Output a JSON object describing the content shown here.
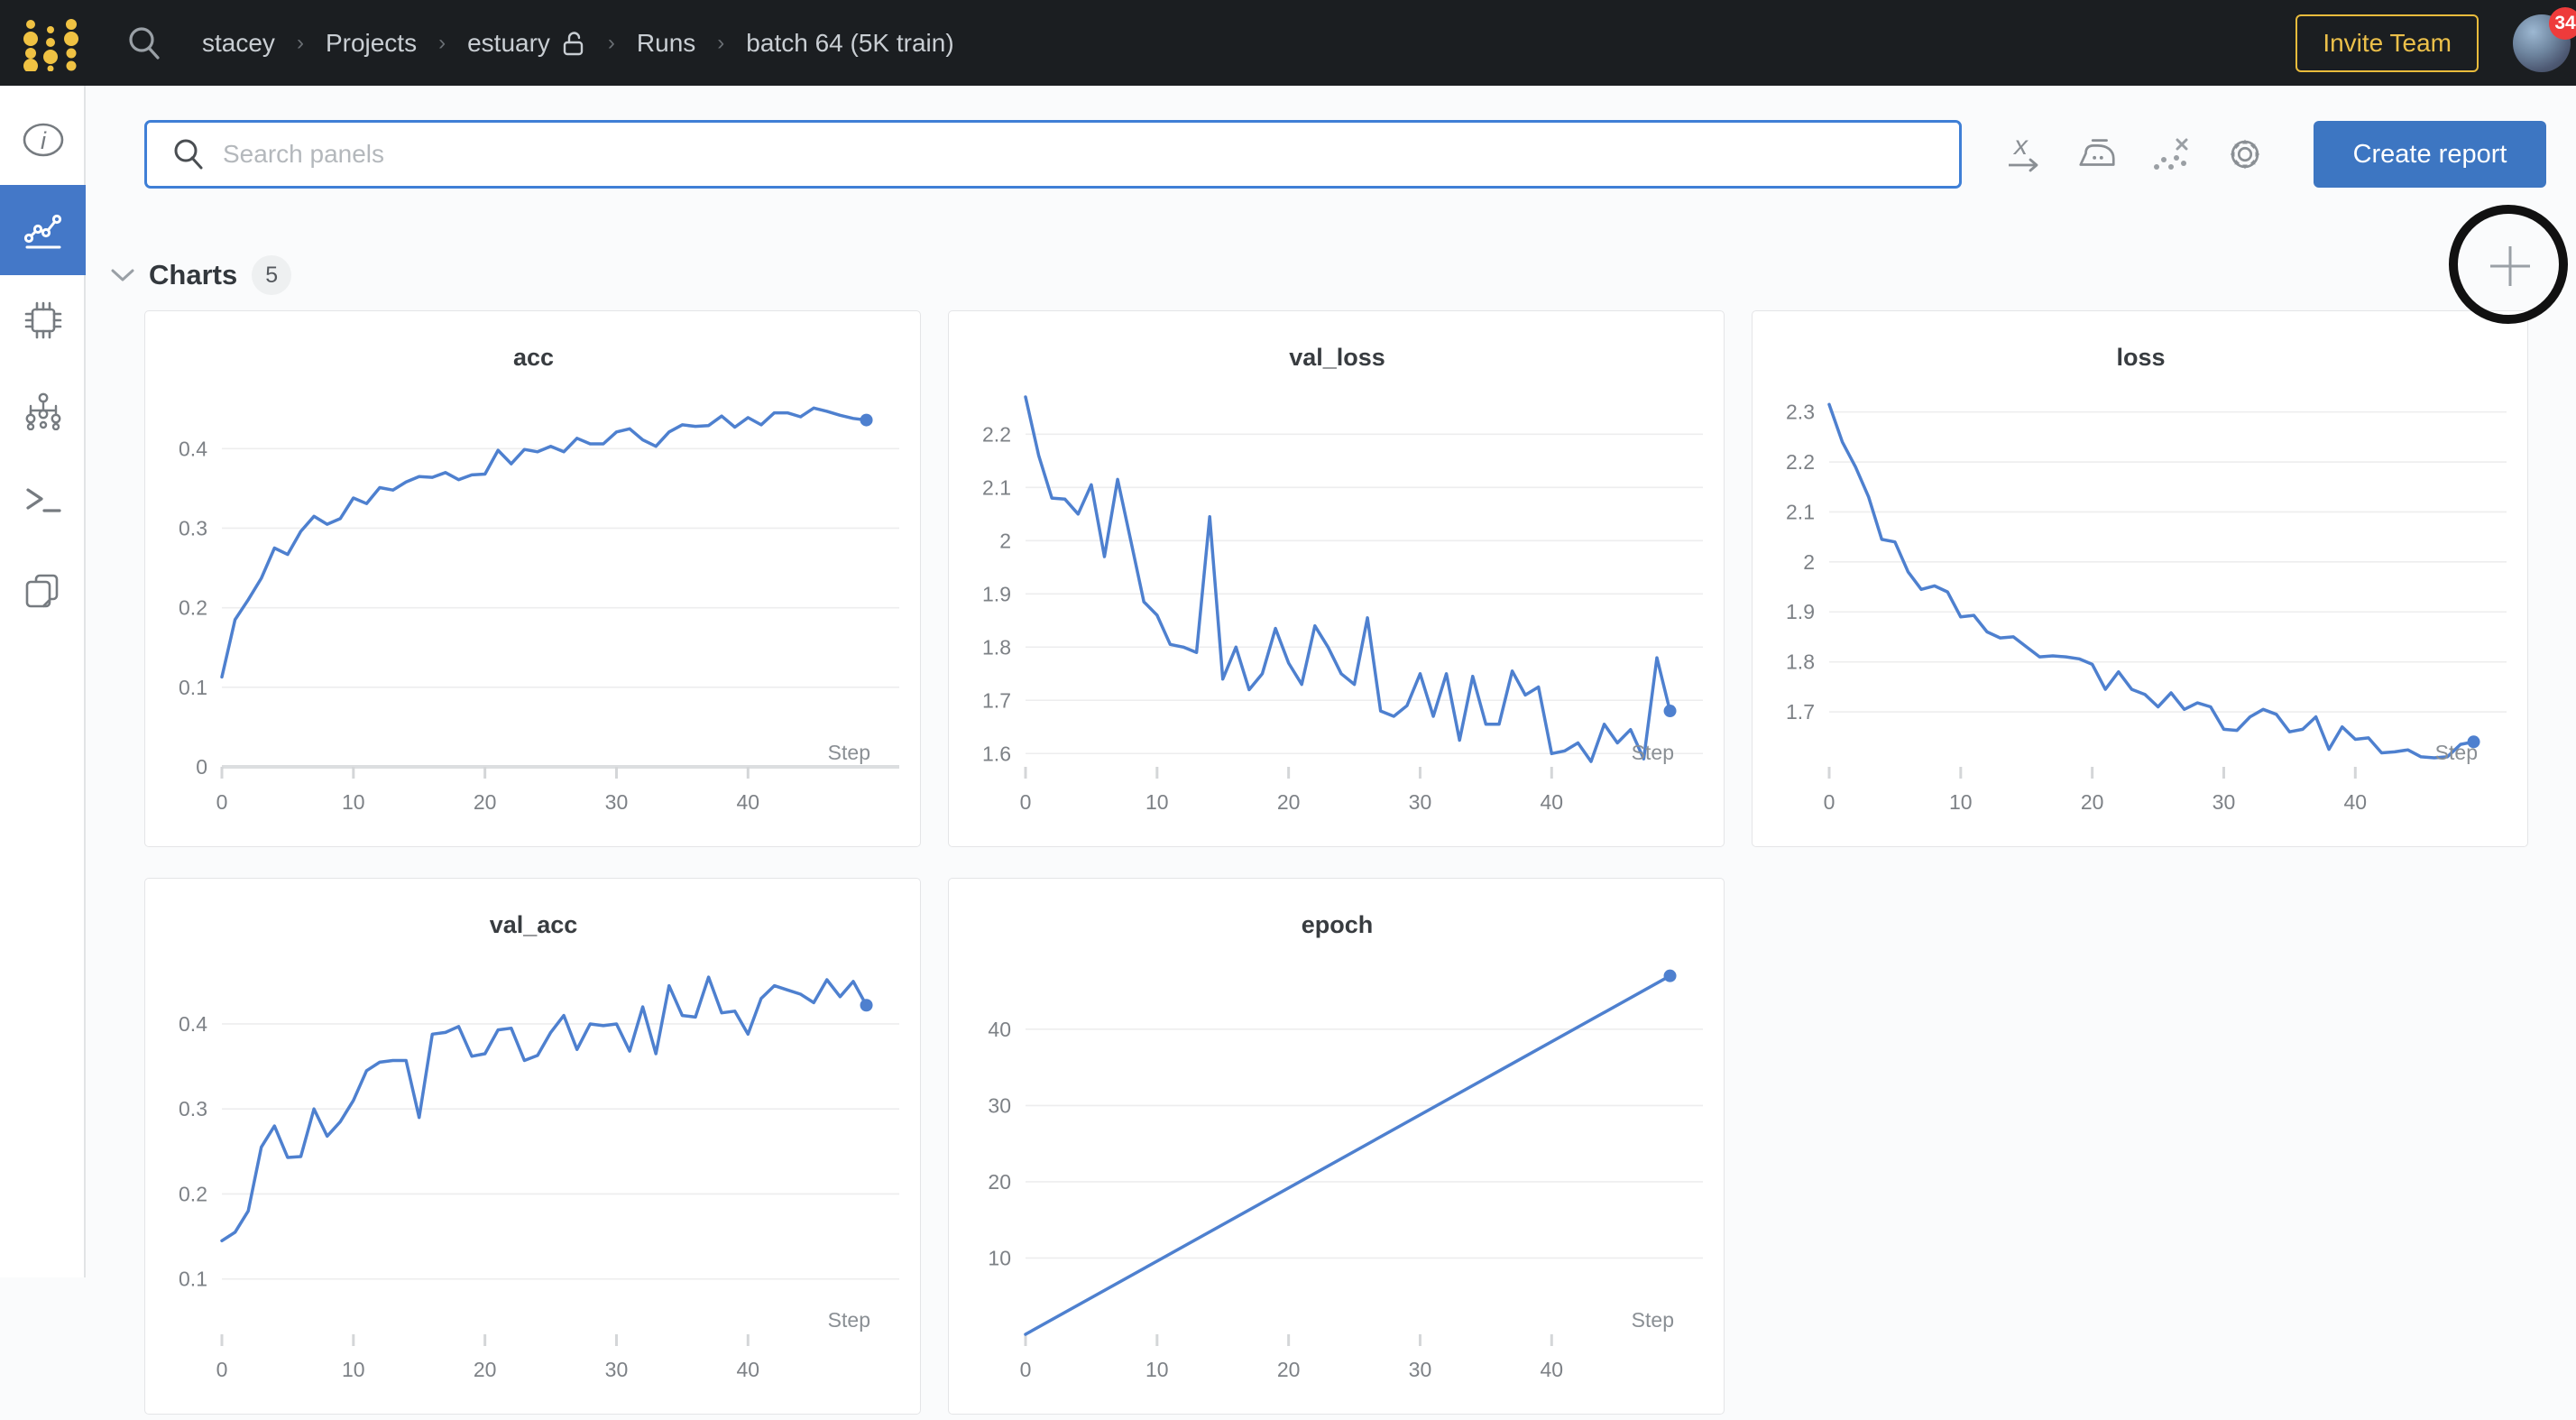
{
  "nav": {
    "breadcrumb": [
      {
        "label": "stacey"
      },
      {
        "label": "Projects"
      },
      {
        "label": "estuary",
        "icon": "unlock"
      },
      {
        "label": "Runs"
      },
      {
        "label": "batch 64 (5K train)"
      }
    ],
    "invite_button": "Invite Team",
    "notification_count": "34"
  },
  "sidebar": {
    "items": [
      {
        "id": "overview",
        "icon": "info-icon",
        "selected": false
      },
      {
        "id": "charts",
        "icon": "line-chart-icon",
        "selected": true
      },
      {
        "id": "system",
        "icon": "chip-icon",
        "selected": false
      },
      {
        "id": "model",
        "icon": "model-graph-icon",
        "selected": false
      },
      {
        "id": "logs",
        "icon": "terminal-icon",
        "selected": false
      },
      {
        "id": "files",
        "icon": "files-icon",
        "selected": false
      }
    ]
  },
  "toolbar": {
    "search_placeholder": "Search panels",
    "icons": [
      "x-axis-icon",
      "smoothing-iron-icon",
      "outliers-icon",
      "settings-gear-icon"
    ],
    "create_report_label": "Create report"
  },
  "section": {
    "title": "Charts",
    "count": "5"
  },
  "colors": {
    "accent_blue": "#4478c8",
    "line_blue": "#4e80cf",
    "button_blue": "#3d76c2",
    "gold": "#e9bc3c",
    "badge_red": "#ee3b3b",
    "nav_bg": "#1b1e21"
  },
  "chart_data": [
    {
      "type": "line",
      "title": "acc",
      "xlabel": "Step",
      "x_ticks": [
        0,
        10,
        20,
        30,
        40
      ],
      "xlim": [
        0,
        51.5
      ],
      "y_ticks": [
        "0",
        "0.1",
        "0.2",
        "0.3",
        "0.4"
      ],
      "ylim": [
        0,
        0.465
      ],
      "baseline": true,
      "end_dot": true,
      "grid": true,
      "legend": "none",
      "values": [
        0.113,
        0.185,
        0.21,
        0.237,
        0.275,
        0.267,
        0.296,
        0.315,
        0.305,
        0.312,
        0.338,
        0.331,
        0.351,
        0.348,
        0.358,
        0.365,
        0.364,
        0.37,
        0.361,
        0.367,
        0.368,
        0.398,
        0.381,
        0.399,
        0.396,
        0.403,
        0.396,
        0.413,
        0.406,
        0.406,
        0.421,
        0.425,
        0.411,
        0.403,
        0.421,
        0.43,
        0.428,
        0.429,
        0.441,
        0.427,
        0.439,
        0.43,
        0.445,
        0.445,
        0.44,
        0.451,
        0.447,
        0.442,
        0.438,
        0.436
      ]
    },
    {
      "type": "line",
      "title": "val_loss",
      "xlabel": "Step",
      "x_ticks": [
        0,
        10,
        20,
        30,
        40
      ],
      "xlim": [
        0,
        51.5
      ],
      "y_ticks": [
        "1.6",
        "1.7",
        "1.8",
        "1.9",
        "2",
        "2.1",
        "2.2"
      ],
      "ylim": [
        1.575,
        2.27
      ],
      "baseline": false,
      "end_dot": true,
      "grid": true,
      "legend": "none",
      "values": [
        2.27,
        2.16,
        2.08,
        2.078,
        2.05,
        2.105,
        1.97,
        2.115,
        2.0,
        1.885,
        1.86,
        1.805,
        1.8,
        1.79,
        2.045,
        1.74,
        1.8,
        1.72,
        1.75,
        1.835,
        1.77,
        1.73,
        1.84,
        1.8,
        1.75,
        1.73,
        1.855,
        1.68,
        1.67,
        1.69,
        1.75,
        1.67,
        1.75,
        1.625,
        1.745,
        1.655,
        1.655,
        1.755,
        1.71,
        1.725,
        1.6,
        1.605,
        1.62,
        1.585,
        1.655,
        1.62,
        1.645,
        1.59,
        1.78,
        1.68
      ]
    },
    {
      "type": "line",
      "title": "loss",
      "xlabel": "Step",
      "x_ticks": [
        0,
        10,
        20,
        30,
        40
      ],
      "xlim": [
        0,
        51.5
      ],
      "y_ticks": [
        "1.7",
        "1.8",
        "1.9",
        "2",
        "2.1",
        "2.2",
        "2.3"
      ],
      "ylim": [
        1.59,
        2.33
      ],
      "baseline": false,
      "end_dot": true,
      "grid": true,
      "legend": "none",
      "values": [
        2.315,
        2.24,
        2.19,
        2.13,
        2.045,
        2.04,
        1.98,
        1.945,
        1.952,
        1.94,
        1.89,
        1.893,
        1.86,
        1.848,
        1.85,
        1.83,
        1.81,
        1.812,
        1.81,
        1.806,
        1.795,
        1.745,
        1.78,
        1.745,
        1.735,
        1.71,
        1.738,
        1.705,
        1.718,
        1.71,
        1.665,
        1.663,
        1.69,
        1.705,
        1.695,
        1.66,
        1.665,
        1.69,
        1.625,
        1.67,
        1.645,
        1.648,
        1.618,
        1.62,
        1.624,
        1.61,
        1.608,
        1.61,
        1.635,
        1.64
      ]
    },
    {
      "type": "line",
      "title": "val_acc",
      "xlabel": "Step",
      "x_ticks": [
        0,
        10,
        20,
        30,
        40
      ],
      "xlim": [
        0,
        51.5
      ],
      "y_ticks": [
        "0.1",
        "0.2",
        "0.3",
        "0.4"
      ],
      "ylim": [
        0.035,
        0.47
      ],
      "baseline": false,
      "end_dot": true,
      "grid": true,
      "legend": "none",
      "values": [
        0.145,
        0.155,
        0.18,
        0.255,
        0.28,
        0.243,
        0.244,
        0.3,
        0.268,
        0.285,
        0.31,
        0.345,
        0.355,
        0.357,
        0.357,
        0.29,
        0.388,
        0.39,
        0.397,
        0.362,
        0.365,
        0.393,
        0.395,
        0.357,
        0.363,
        0.39,
        0.41,
        0.37,
        0.4,
        0.398,
        0.4,
        0.368,
        0.42,
        0.365,
        0.445,
        0.41,
        0.408,
        0.455,
        0.413,
        0.415,
        0.388,
        0.43,
        0.445,
        0.44,
        0.435,
        0.425,
        0.452,
        0.432,
        0.45,
        0.422
      ]
    },
    {
      "type": "line",
      "title": "epoch",
      "xlabel": "Step",
      "x_ticks": [
        0,
        10,
        20,
        30,
        40
      ],
      "xlim": [
        0,
        51.5
      ],
      "y_ticks": [
        "10",
        "20",
        "30",
        "40"
      ],
      "ylim": [
        0,
        48.5
      ],
      "baseline": false,
      "end_dot": true,
      "grid": true,
      "legend": "none",
      "x": [
        0,
        49
      ],
      "values": [
        0,
        47
      ]
    }
  ]
}
